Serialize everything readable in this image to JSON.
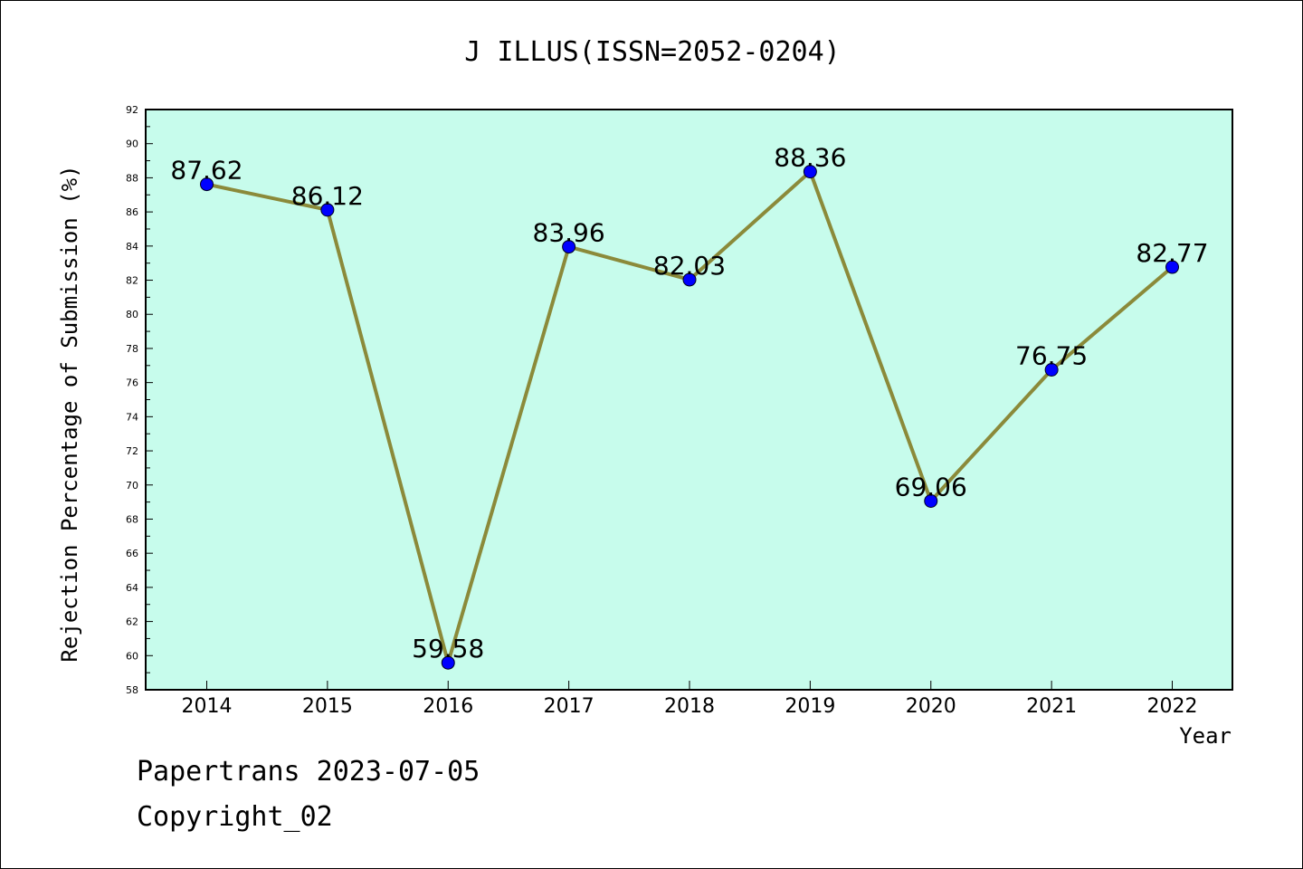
{
  "chart_data": {
    "type": "line",
    "title": "J ILLUS(ISSN=2052-0204)",
    "xlabel": "Year",
    "ylabel": "Rejection Percentage of Submission (%)",
    "categories": [
      "2014",
      "2015",
      "2016",
      "2017",
      "2018",
      "2019",
      "2020",
      "2021",
      "2022"
    ],
    "values": [
      87.62,
      86.12,
      59.58,
      83.96,
      82.03,
      88.36,
      69.06,
      76.75,
      82.77
    ],
    "data_labels": [
      "87.62",
      "86.12",
      "59.58",
      "83.96",
      "82.03",
      "88.36",
      "69.06",
      "76.75",
      "82.77"
    ],
    "ylim": [
      58,
      92
    ],
    "yticks": [
      "58",
      "60",
      "62",
      "64",
      "66",
      "68",
      "70",
      "72",
      "74",
      "76",
      "78",
      "80",
      "82",
      "84",
      "86",
      "88",
      "90",
      "92"
    ],
    "grid": false,
    "colors": {
      "plot_bg": "#c7fcec",
      "line": "#8b8a3a",
      "marker": "#0000ff"
    }
  },
  "footer": {
    "line1": "Papertrans 2023-07-05",
    "line2": "Copyright_02"
  }
}
